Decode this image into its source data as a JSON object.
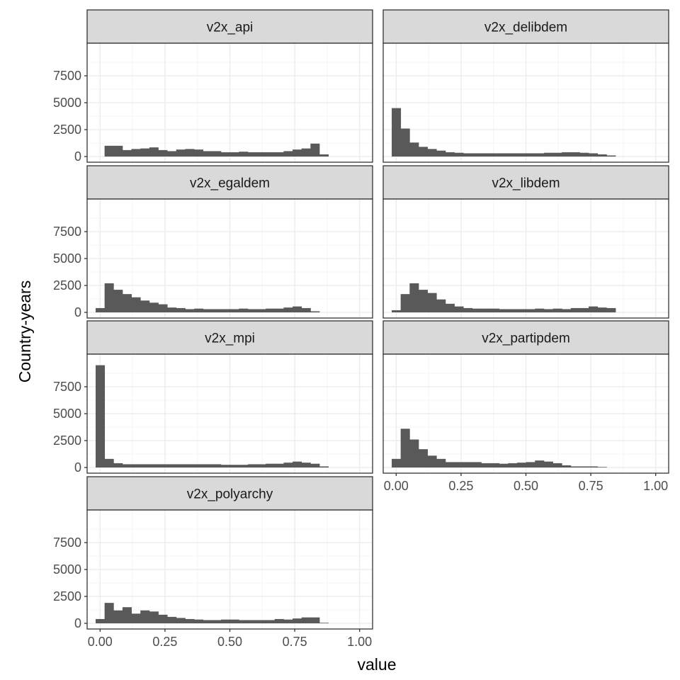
{
  "chart_data": {
    "type": "histogram-facets",
    "xlabel": "value",
    "ylabel": "Country-years",
    "xlim": [
      -0.05,
      1.05
    ],
    "ylim": [
      0,
      10000
    ],
    "x_ticks": [
      0.0,
      0.25,
      0.5,
      0.75,
      1.0
    ],
    "x_tick_labels": [
      "0.00",
      "0.25",
      "0.50",
      "0.75",
      "1.00"
    ],
    "y_ticks": [
      0,
      2500,
      5000,
      7500
    ],
    "y_tick_labels": [
      "0",
      "2500",
      "5000",
      "7500"
    ],
    "bin_width": 0.0345,
    "grid": true,
    "colors": {
      "bar": "#595959",
      "strip": "#d9d9d9",
      "panel_border": "#333333",
      "grid_major": "#ebebeb",
      "grid_minor": "#f5f5f5"
    },
    "facets": [
      {
        "name": "v2x_api",
        "bin_start": 0.0172,
        "counts": [
          1000,
          1000,
          600,
          700,
          750,
          850,
          600,
          500,
          650,
          700,
          650,
          500,
          500,
          400,
          400,
          450,
          400,
          400,
          400,
          400,
          500,
          650,
          750,
          1200,
          200
        ]
      },
      {
        "name": "v2x_delibdem",
        "bin_start": -0.0172,
        "counts": [
          4500,
          2600,
          1300,
          900,
          700,
          550,
          400,
          350,
          300,
          300,
          300,
          300,
          300,
          300,
          300,
          300,
          300,
          350,
          350,
          400,
          400,
          350,
          300,
          200,
          100
        ]
      },
      {
        "name": "v2x_egaldem",
        "bin_start": -0.0172,
        "counts": [
          400,
          2700,
          2100,
          1700,
          1400,
          1100,
          900,
          750,
          450,
          400,
          300,
          350,
          300,
          300,
          300,
          300,
          350,
          300,
          300,
          350,
          350,
          450,
          550,
          400,
          100
        ]
      },
      {
        "name": "v2x_libdem",
        "bin_start": -0.0172,
        "counts": [
          200,
          1700,
          2700,
          2100,
          1800,
          1200,
          800,
          550,
          400,
          350,
          350,
          350,
          300,
          300,
          300,
          300,
          350,
          300,
          350,
          300,
          400,
          400,
          550,
          450,
          400
        ]
      },
      {
        "name": "v2x_mpi",
        "bin_start": -0.0172,
        "counts": [
          9500,
          800,
          400,
          300,
          300,
          300,
          300,
          300,
          300,
          300,
          300,
          300,
          300,
          300,
          250,
          250,
          250,
          300,
          300,
          350,
          350,
          450,
          550,
          450,
          350,
          100
        ]
      },
      {
        "name": "v2x_partipdem",
        "bin_start": -0.0172,
        "counts": [
          800,
          3600,
          2600,
          1700,
          1100,
          800,
          500,
          500,
          500,
          500,
          400,
          400,
          350,
          400,
          450,
          500,
          650,
          550,
          400,
          200,
          100,
          100,
          100,
          50
        ]
      },
      {
        "name": "v2x_polyarchy",
        "bin_start": -0.0172,
        "counts": [
          400,
          1900,
          1200,
          1500,
          900,
          1200,
          1100,
          800,
          600,
          500,
          400,
          350,
          300,
          300,
          350,
          350,
          300,
          300,
          300,
          300,
          400,
          350,
          450,
          550,
          550,
          50
        ]
      }
    ]
  }
}
